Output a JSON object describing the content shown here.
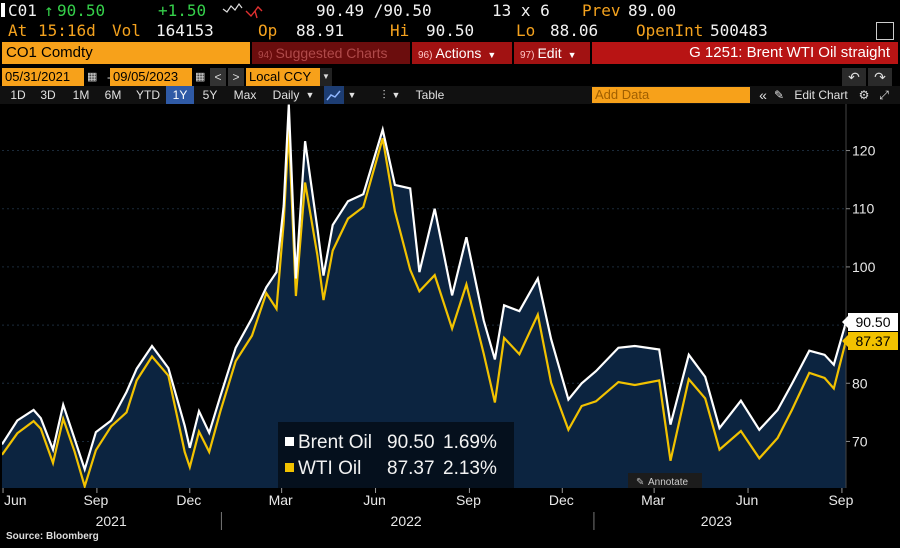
{
  "quote": {
    "ticker": "C01",
    "last_arrow": "↑",
    "last": "90.50",
    "change": "+1.50",
    "bid_ask": "90.49 /90.50",
    "size": "13 x 6",
    "prev_label": "Prev",
    "prev": "89.00",
    "at_label": "At",
    "time": "15:16d",
    "vol_label": "Vol",
    "vol": "164153",
    "op_label": "Op",
    "op": "88.91",
    "hi_label": "Hi",
    "hi": "90.50",
    "lo_label": "Lo",
    "lo": "88.06",
    "oi_label": "OpenInt",
    "oi": "500483"
  },
  "command_bar": {
    "security": "CO1 Comdty",
    "suggested": "Suggested Charts",
    "suggested_num": "94)",
    "actions": "Actions",
    "actions_num": "96)",
    "edit": "Edit",
    "edit_num": "97)",
    "graph_title": "G 1251: Brent WTI Oil straight"
  },
  "date_row": {
    "start": "05/31/2021",
    "end": "09/05/2023",
    "currency": "Local CCY"
  },
  "toolbar": {
    "periods": [
      "1D",
      "3D",
      "1M",
      "6M",
      "YTD",
      "1Y",
      "5Y",
      "Max"
    ],
    "active_period": "1Y",
    "frequency": "Daily",
    "table": "Table",
    "add_data": "Add Data",
    "edit_chart": "Edit Chart"
  },
  "colors": {
    "brent": "#ffffff",
    "wti": "#f2c200",
    "area": "#0c2440",
    "accent": "#f7a11a"
  },
  "chart_data": {
    "type": "line",
    "x_range": [
      "2021-05-31",
      "2023-09-05"
    ],
    "ylim": [
      62,
      128
    ],
    "y_ticks": [
      70,
      80,
      90,
      100,
      110,
      120
    ],
    "x_tick_labels": [
      "Jun",
      "Sep",
      "Dec",
      "Mar",
      "Jun",
      "Sep",
      "Dec",
      "Mar",
      "Jun",
      "Sep"
    ],
    "year_labels": [
      "2021",
      "2022",
      "2023"
    ],
    "legend_position": "bottom-center",
    "annotate_label": "Annotate",
    "series": [
      {
        "name": "Brent Oil",
        "last_value": "90.50",
        "change": "1.69%",
        "points": [
          [
            "2021-05-31",
            69.5
          ],
          [
            "2021-06-15",
            73.6
          ],
          [
            "2021-07-01",
            75.4
          ],
          [
            "2021-07-08",
            74.0
          ],
          [
            "2021-07-20",
            68.6
          ],
          [
            "2021-07-30",
            76.3
          ],
          [
            "2021-08-10",
            70.5
          ],
          [
            "2021-08-20",
            65.2
          ],
          [
            "2021-08-31",
            71.6
          ],
          [
            "2021-09-15",
            73.6
          ],
          [
            "2021-09-30",
            78.5
          ],
          [
            "2021-10-10",
            82.5
          ],
          [
            "2021-10-25",
            86.4
          ],
          [
            "2021-11-10",
            82.6
          ],
          [
            "2021-11-26",
            72.7
          ],
          [
            "2021-12-01",
            68.9
          ],
          [
            "2021-12-10",
            75.2
          ],
          [
            "2021-12-20",
            71.5
          ],
          [
            "2021-12-31",
            77.8
          ],
          [
            "2022-01-15",
            86.1
          ],
          [
            "2022-01-31",
            91.2
          ],
          [
            "2022-02-14",
            96.5
          ],
          [
            "2022-02-24",
            99.1
          ],
          [
            "2022-03-03",
            110.5
          ],
          [
            "2022-03-08",
            127.9
          ],
          [
            "2022-03-15",
            98.0
          ],
          [
            "2022-03-24",
            121.6
          ],
          [
            "2022-04-05",
            106.6
          ],
          [
            "2022-04-11",
            98.5
          ],
          [
            "2022-04-20",
            107.2
          ],
          [
            "2022-05-05",
            111.3
          ],
          [
            "2022-05-20",
            112.5
          ],
          [
            "2022-06-08",
            123.6
          ],
          [
            "2022-06-20",
            114.1
          ],
          [
            "2022-07-05",
            113.5
          ],
          [
            "2022-07-14",
            99.1
          ],
          [
            "2022-07-29",
            110.0
          ],
          [
            "2022-08-15",
            95.1
          ],
          [
            "2022-08-29",
            105.1
          ],
          [
            "2022-09-15",
            90.8
          ],
          [
            "2022-09-26",
            84.1
          ],
          [
            "2022-10-05",
            93.4
          ],
          [
            "2022-10-20",
            92.4
          ],
          [
            "2022-11-07",
            98.0
          ],
          [
            "2022-11-20",
            87.6
          ],
          [
            "2022-12-07",
            77.2
          ],
          [
            "2022-12-20",
            80.0
          ],
          [
            "2023-01-03",
            82.1
          ],
          [
            "2023-01-25",
            86.1
          ],
          [
            "2023-02-10",
            86.4
          ],
          [
            "2023-03-06",
            85.8
          ],
          [
            "2023-03-17",
            72.9
          ],
          [
            "2023-04-04",
            84.9
          ],
          [
            "2023-04-20",
            81.1
          ],
          [
            "2023-05-04",
            72.3
          ],
          [
            "2023-05-25",
            77.0
          ],
          [
            "2023-06-12",
            72.0
          ],
          [
            "2023-06-30",
            75.4
          ],
          [
            "2023-07-14",
            79.9
          ],
          [
            "2023-07-31",
            85.6
          ],
          [
            "2023-08-15",
            84.9
          ],
          [
            "2023-08-24",
            83.2
          ],
          [
            "2023-09-05",
            90.5
          ]
        ]
      },
      {
        "name": "WTI Oil",
        "last_value": "87.37",
        "change": "2.13%",
        "points": [
          [
            "2021-05-31",
            67.7
          ],
          [
            "2021-06-15",
            71.4
          ],
          [
            "2021-07-01",
            73.5
          ],
          [
            "2021-07-08",
            72.2
          ],
          [
            "2021-07-20",
            66.3
          ],
          [
            "2021-07-30",
            73.9
          ],
          [
            "2021-08-10",
            68.3
          ],
          [
            "2021-08-20",
            62.3
          ],
          [
            "2021-08-31",
            68.5
          ],
          [
            "2021-09-15",
            72.6
          ],
          [
            "2021-09-30",
            75.0
          ],
          [
            "2021-10-10",
            80.5
          ],
          [
            "2021-10-25",
            84.6
          ],
          [
            "2021-11-10",
            81.3
          ],
          [
            "2021-11-26",
            68.2
          ],
          [
            "2021-12-01",
            65.6
          ],
          [
            "2021-12-10",
            71.7
          ],
          [
            "2021-12-20",
            68.2
          ],
          [
            "2021-12-31",
            75.2
          ],
          [
            "2022-01-15",
            83.8
          ],
          [
            "2022-01-31",
            88.2
          ],
          [
            "2022-02-14",
            95.5
          ],
          [
            "2022-02-24",
            92.8
          ],
          [
            "2022-03-03",
            107.7
          ],
          [
            "2022-03-08",
            123.7
          ],
          [
            "2022-03-15",
            95.0
          ],
          [
            "2022-03-24",
            114.5
          ],
          [
            "2022-04-05",
            102.0
          ],
          [
            "2022-04-11",
            94.3
          ],
          [
            "2022-04-20",
            102.8
          ],
          [
            "2022-05-05",
            108.3
          ],
          [
            "2022-05-20",
            110.3
          ],
          [
            "2022-06-08",
            122.1
          ],
          [
            "2022-06-20",
            109.6
          ],
          [
            "2022-07-05",
            99.5
          ],
          [
            "2022-07-14",
            95.8
          ],
          [
            "2022-07-29",
            98.6
          ],
          [
            "2022-08-15",
            89.4
          ],
          [
            "2022-08-29",
            97.0
          ],
          [
            "2022-09-15",
            85.1
          ],
          [
            "2022-09-26",
            76.7
          ],
          [
            "2022-10-05",
            87.8
          ],
          [
            "2022-10-20",
            85.0
          ],
          [
            "2022-11-07",
            91.8
          ],
          [
            "2022-11-20",
            80.1
          ],
          [
            "2022-12-07",
            72.0
          ],
          [
            "2022-12-20",
            76.1
          ],
          [
            "2023-01-03",
            76.9
          ],
          [
            "2023-01-25",
            80.2
          ],
          [
            "2023-02-10",
            79.7
          ],
          [
            "2023-03-06",
            80.5
          ],
          [
            "2023-03-17",
            66.7
          ],
          [
            "2023-04-04",
            80.7
          ],
          [
            "2023-04-20",
            77.4
          ],
          [
            "2023-05-04",
            68.6
          ],
          [
            "2023-05-25",
            71.8
          ],
          [
            "2023-06-12",
            67.1
          ],
          [
            "2023-06-30",
            70.6
          ],
          [
            "2023-07-14",
            75.4
          ],
          [
            "2023-07-31",
            81.8
          ],
          [
            "2023-08-15",
            80.9
          ],
          [
            "2023-08-24",
            79.1
          ],
          [
            "2023-09-05",
            87.37
          ]
        ]
      }
    ]
  },
  "footer": {
    "source": "Source: Bloomberg"
  }
}
